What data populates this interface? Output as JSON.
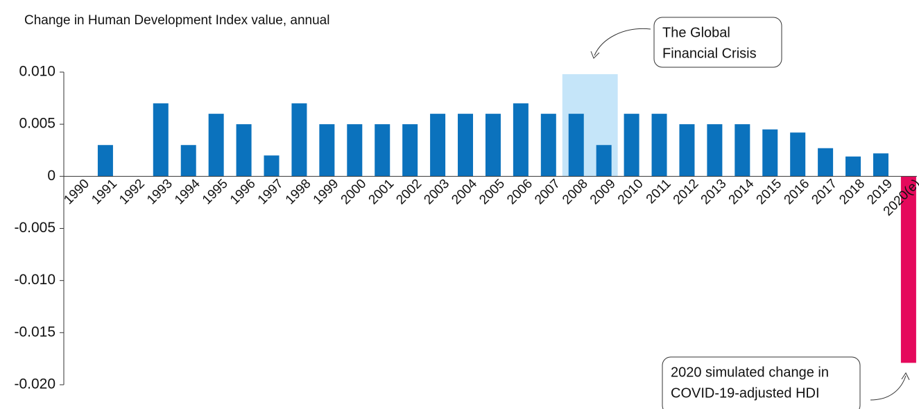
{
  "chart_data": {
    "type": "bar",
    "y_axis_label": "Change in Human Development Index value, annual",
    "categories": [
      "1990",
      "1991",
      "1992",
      "1993",
      "1994",
      "1995",
      "1996",
      "1997",
      "1998",
      "1999",
      "2000",
      "2001",
      "2002",
      "2003",
      "2004",
      "2005",
      "2006",
      "2007",
      "2008",
      "2009",
      "2010",
      "2011",
      "2012",
      "2013",
      "2014",
      "2015",
      "2016",
      "2017",
      "2018",
      "2019",
      "2020(e)"
    ],
    "values": [
      null,
      0.003,
      0,
      0.007,
      0.003,
      0.006,
      0.005,
      0.002,
      0.007,
      0.005,
      0.005,
      0.005,
      0.005,
      0.006,
      0.006,
      0.006,
      0.007,
      0.006,
      0.006,
      0.003,
      0.006,
      0.006,
      0.005,
      0.005,
      0.005,
      0.0045,
      0.0042,
      0.0027,
      0.0019,
      0.0022,
      -0.0179
    ],
    "colors": [
      "#0b72bd",
      "#0b72bd",
      "#0b72bd",
      "#0b72bd",
      "#0b72bd",
      "#0b72bd",
      "#0b72bd",
      "#0b72bd",
      "#0b72bd",
      "#0b72bd",
      "#0b72bd",
      "#0b72bd",
      "#0b72bd",
      "#0b72bd",
      "#0b72bd",
      "#0b72bd",
      "#0b72bd",
      "#0b72bd",
      "#0b72bd",
      "#0b72bd",
      "#0b72bd",
      "#0b72bd",
      "#0b72bd",
      "#0b72bd",
      "#0b72bd",
      "#0b72bd",
      "#0b72bd",
      "#0b72bd",
      "#0b72bd",
      "#0b72bd",
      "#e5095c"
    ],
    "ylim": [
      -0.02,
      0.01
    ],
    "yticks": [
      {
        "value": 0.01,
        "label": "0.010"
      },
      0.005,
      0,
      -0.005,
      {
        "value": -0.01,
        "label": "-0.010"
      },
      -0.015,
      {
        "value": -0.02,
        "label": "-0.020"
      }
    ],
    "highlight": {
      "from": "2008",
      "to": "2009",
      "color": "#c5e5f9"
    },
    "annotations": [
      {
        "lines": [
          "The Global",
          "Financial Crisis"
        ]
      },
      {
        "lines": [
          "2020 simulated change in",
          "COVID-19-adjusted HDI"
        ]
      }
    ]
  }
}
